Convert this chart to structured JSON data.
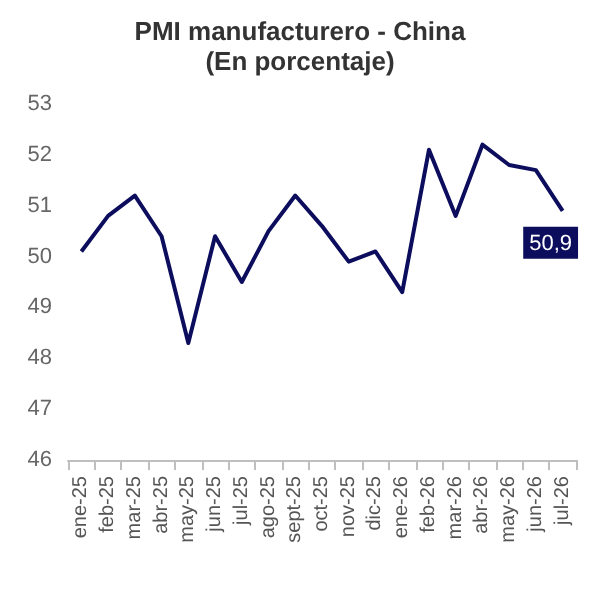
{
  "chart_data": {
    "type": "line",
    "title": "PMI manufacturero - China",
    "subtitle": "(En porcentaje)",
    "categories": [
      "ene-25",
      "feb-25",
      "mar-25",
      "abr-25",
      "may-25",
      "jun-25",
      "jul-25",
      "ago-25",
      "sept-25",
      "oct-25",
      "nov-25",
      "dic-25",
      "ene-26",
      "feb-26",
      "mar-26",
      "abr-26",
      "may-26",
      "jun-26",
      "jul-26"
    ],
    "series": [
      {
        "color": "#0d0d5e",
        "values": [
          50.1,
          50.8,
          51.2,
          50.4,
          48.3,
          50.4,
          49.5,
          50.5,
          51.2,
          50.6,
          49.9,
          50.1,
          49.3,
          52.1,
          50.8,
          52.2,
          51.8,
          51.7,
          50.9
        ],
        "value_labels": [
          null,
          null,
          null,
          null,
          null,
          null,
          null,
          null,
          null,
          null,
          null,
          null,
          null,
          null,
          null,
          null,
          null,
          null,
          "50,9"
        ]
      }
    ],
    "ylim": [
      46,
      53
    ],
    "yticks": [
      46,
      47,
      48,
      49,
      50,
      51,
      52,
      53
    ],
    "grid": false,
    "marker": "none",
    "line_style": "solid"
  }
}
